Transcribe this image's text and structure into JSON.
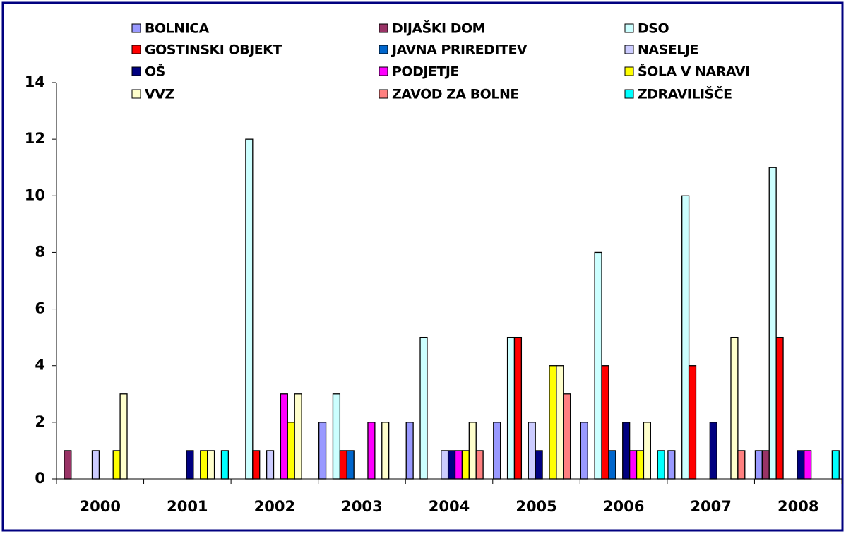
{
  "chart_data": {
    "type": "bar",
    "categories": [
      "2000",
      "2001",
      "2002",
      "2003",
      "2004",
      "2005",
      "2006",
      "2007",
      "2008"
    ],
    "series": [
      {
        "name": "BOLNICA",
        "color": "#9999ff",
        "values": [
          0,
          0,
          0,
          2,
          2,
          2,
          2,
          1,
          1
        ]
      },
      {
        "name": "DIJAŠKI DOM",
        "color": "#993366",
        "values": [
          1,
          0,
          0,
          0,
          0,
          0,
          0,
          0,
          1
        ]
      },
      {
        "name": "DSO",
        "color": "#ccffff",
        "values": [
          0,
          0,
          12,
          3,
          5,
          5,
          8,
          10,
          11
        ]
      },
      {
        "name": "GOSTINSKI OBJEKT",
        "color": "#ff0000",
        "values": [
          0,
          0,
          1,
          1,
          0,
          5,
          4,
          4,
          5
        ]
      },
      {
        "name": "JAVNA PRIREDITEV",
        "color": "#0066cc",
        "values": [
          0,
          0,
          0,
          1,
          0,
          0,
          1,
          0,
          0
        ]
      },
      {
        "name": "NASELJE",
        "color": "#ccccff",
        "values": [
          1,
          0,
          1,
          0,
          1,
          2,
          0,
          0,
          0
        ]
      },
      {
        "name": "OŠ",
        "color": "#000080",
        "values": [
          0,
          1,
          0,
          0,
          1,
          1,
          2,
          2,
          1
        ]
      },
      {
        "name": "PODJETJE",
        "color": "#ff00ff",
        "values": [
          0,
          0,
          3,
          2,
          1,
          0,
          1,
          0,
          1
        ]
      },
      {
        "name": "ŠOLA V NARAVI",
        "color": "#ffff00",
        "values": [
          1,
          1,
          2,
          0,
          1,
          4,
          1,
          0,
          0
        ]
      },
      {
        "name": "VVZ",
        "color": "#ffffcc",
        "values": [
          3,
          1,
          3,
          2,
          2,
          4,
          2,
          5,
          0
        ]
      },
      {
        "name": "ZAVOD ZA BOLNE",
        "color": "#ff8080",
        "values": [
          0,
          0,
          0,
          0,
          1,
          3,
          0,
          1,
          0
        ]
      },
      {
        "name": "ZDRAVILIŠČE",
        "color": "#00ffff",
        "values": [
          0,
          1,
          0,
          0,
          0,
          0,
          1,
          0,
          1
        ]
      }
    ],
    "ylim": [
      0,
      14
    ],
    "yticks": [
      0,
      2,
      4,
      6,
      8,
      10,
      12,
      14
    ],
    "grid": false
  }
}
